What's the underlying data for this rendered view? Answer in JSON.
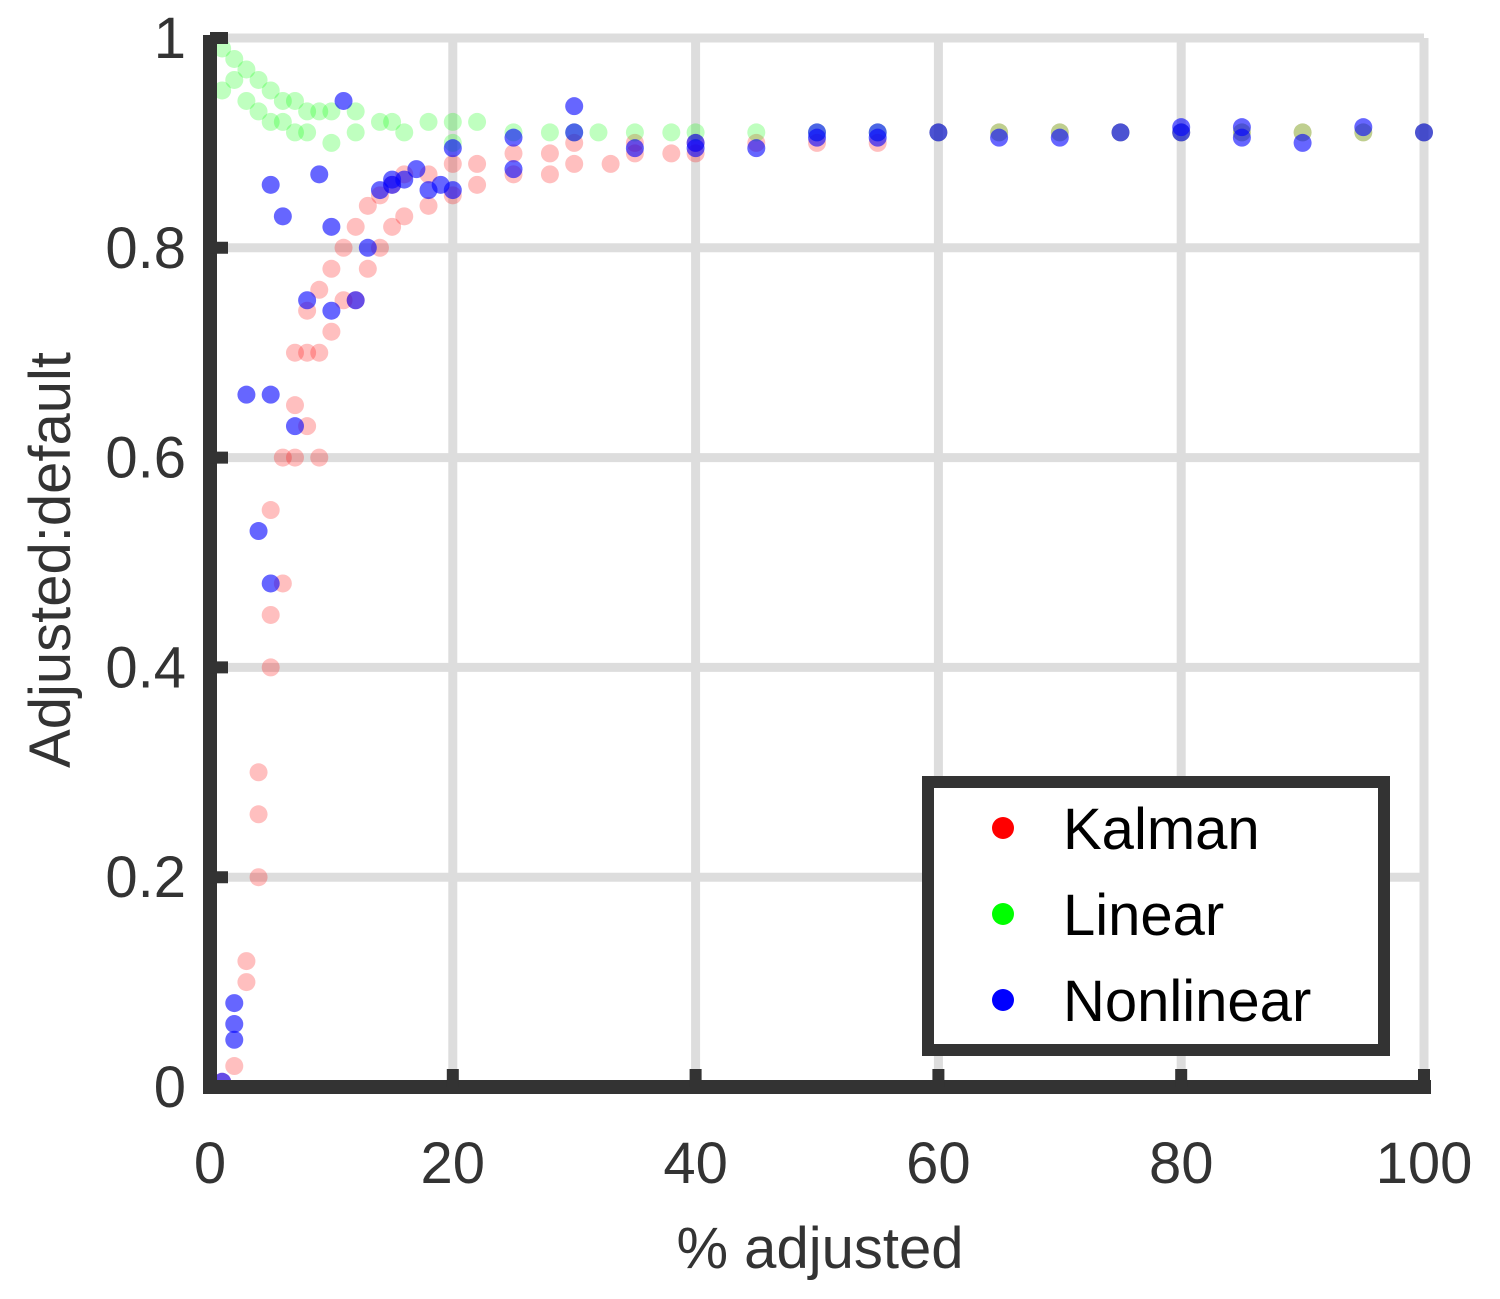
{
  "chart_data": {
    "type": "scatter",
    "xlabel": "% adjusted",
    "ylabel": "Adjusted:default",
    "xlim": [
      0,
      100
    ],
    "ylim": [
      0,
      1
    ],
    "x_ticks": [
      "0",
      "20",
      "40",
      "60",
      "80",
      "100"
    ],
    "y_ticks": [
      "0",
      "0.2",
      "0.4",
      "0.6",
      "0.8",
      "1"
    ],
    "grid": true,
    "legend_position": "bottom-right",
    "series": [
      {
        "name": "Kalman",
        "color": "#ff0000",
        "alpha": 0.25,
        "points": [
          [
            1,
            0.005
          ],
          [
            2,
            0.02
          ],
          [
            3,
            0.1
          ],
          [
            3,
            0.12
          ],
          [
            4,
            0.2
          ],
          [
            4,
            0.26
          ],
          [
            4,
            0.3
          ],
          [
            5,
            0.4
          ],
          [
            5,
            0.45
          ],
          [
            5,
            0.55
          ],
          [
            6,
            0.48
          ],
          [
            6,
            0.6
          ],
          [
            7,
            0.6
          ],
          [
            7,
            0.65
          ],
          [
            7,
            0.7
          ],
          [
            8,
            0.63
          ],
          [
            8,
            0.7
          ],
          [
            8,
            0.74
          ],
          [
            9,
            0.6
          ],
          [
            9,
            0.7
          ],
          [
            9,
            0.76
          ],
          [
            10,
            0.72
          ],
          [
            10,
            0.78
          ],
          [
            11,
            0.75
          ],
          [
            11,
            0.8
          ],
          [
            12,
            0.75
          ],
          [
            12,
            0.82
          ],
          [
            13,
            0.78
          ],
          [
            13,
            0.84
          ],
          [
            14,
            0.8
          ],
          [
            14,
            0.85
          ],
          [
            15,
            0.82
          ],
          [
            15,
            0.86
          ],
          [
            16,
            0.83
          ],
          [
            16,
            0.87
          ],
          [
            18,
            0.84
          ],
          [
            18,
            0.87
          ],
          [
            20,
            0.85
          ],
          [
            20,
            0.88
          ],
          [
            22,
            0.86
          ],
          [
            22,
            0.88
          ],
          [
            25,
            0.87
          ],
          [
            25,
            0.89
          ],
          [
            28,
            0.87
          ],
          [
            28,
            0.89
          ],
          [
            30,
            0.88
          ],
          [
            30,
            0.9
          ],
          [
            33,
            0.88
          ],
          [
            35,
            0.89
          ],
          [
            35,
            0.9
          ],
          [
            38,
            0.89
          ],
          [
            40,
            0.89
          ],
          [
            40,
            0.9
          ],
          [
            45,
            0.9
          ],
          [
            50,
            0.9
          ],
          [
            55,
            0.9
          ],
          [
            60,
            0.91
          ],
          [
            65,
            0.91
          ],
          [
            70,
            0.91
          ],
          [
            75,
            0.91
          ],
          [
            80,
            0.91
          ],
          [
            85,
            0.91
          ],
          [
            90,
            0.91
          ],
          [
            95,
            0.91
          ],
          [
            100,
            0.91
          ]
        ]
      },
      {
        "name": "Linear",
        "color": "#00ff00",
        "alpha": 0.25,
        "points": [
          [
            1,
            0.99
          ],
          [
            1,
            0.95
          ],
          [
            2,
            0.98
          ],
          [
            2,
            0.96
          ],
          [
            3,
            0.97
          ],
          [
            3,
            0.94
          ],
          [
            4,
            0.96
          ],
          [
            4,
            0.93
          ],
          [
            5,
            0.95
          ],
          [
            5,
            0.92
          ],
          [
            6,
            0.94
          ],
          [
            6,
            0.92
          ],
          [
            7,
            0.94
          ],
          [
            7,
            0.91
          ],
          [
            8,
            0.93
          ],
          [
            8,
            0.91
          ],
          [
            9,
            0.93
          ],
          [
            10,
            0.93
          ],
          [
            10,
            0.9
          ],
          [
            12,
            0.93
          ],
          [
            12,
            0.91
          ],
          [
            14,
            0.92
          ],
          [
            15,
            0.92
          ],
          [
            16,
            0.91
          ],
          [
            18,
            0.92
          ],
          [
            20,
            0.92
          ],
          [
            20,
            0.9
          ],
          [
            22,
            0.92
          ],
          [
            25,
            0.91
          ],
          [
            28,
            0.91
          ],
          [
            30,
            0.91
          ],
          [
            32,
            0.91
          ],
          [
            35,
            0.91
          ],
          [
            38,
            0.91
          ],
          [
            40,
            0.91
          ],
          [
            45,
            0.91
          ],
          [
            50,
            0.91
          ],
          [
            55,
            0.91
          ],
          [
            60,
            0.91
          ],
          [
            65,
            0.91
          ],
          [
            70,
            0.91
          ],
          [
            75,
            0.91
          ],
          [
            80,
            0.91
          ],
          [
            85,
            0.91
          ],
          [
            90,
            0.91
          ],
          [
            95,
            0.91
          ],
          [
            100,
            0.91
          ]
        ]
      },
      {
        "name": "Nonlinear",
        "color": "#0000ff",
        "alpha": 0.6,
        "points": [
          [
            1,
            0.005
          ],
          [
            2,
            0.045
          ],
          [
            2,
            0.06
          ],
          [
            2,
            0.08
          ],
          [
            3,
            0.66
          ],
          [
            4,
            0.53
          ],
          [
            5,
            0.48
          ],
          [
            5,
            0.66
          ],
          [
            5,
            0.86
          ],
          [
            6,
            0.83
          ],
          [
            7,
            0.63
          ],
          [
            8,
            0.75
          ],
          [
            9,
            0.87
          ],
          [
            10,
            0.74
          ],
          [
            10,
            0.82
          ],
          [
            11,
            0.94
          ],
          [
            12,
            0.75
          ],
          [
            13,
            0.8
          ],
          [
            14,
            0.855
          ],
          [
            15,
            0.86
          ],
          [
            15,
            0.865
          ],
          [
            16,
            0.865
          ],
          [
            17,
            0.875
          ],
          [
            18,
            0.855
          ],
          [
            19,
            0.86
          ],
          [
            20,
            0.855
          ],
          [
            20,
            0.895
          ],
          [
            25,
            0.875
          ],
          [
            25,
            0.905
          ],
          [
            30,
            0.91
          ],
          [
            30,
            0.935
          ],
          [
            35,
            0.895
          ],
          [
            40,
            0.9
          ],
          [
            40,
            0.895
          ],
          [
            45,
            0.895
          ],
          [
            50,
            0.905
          ],
          [
            50,
            0.91
          ],
          [
            55,
            0.905
          ],
          [
            55,
            0.91
          ],
          [
            60,
            0.91
          ],
          [
            65,
            0.905
          ],
          [
            70,
            0.905
          ],
          [
            75,
            0.91
          ],
          [
            80,
            0.91
          ],
          [
            80,
            0.915
          ],
          [
            85,
            0.905
          ],
          [
            85,
            0.915
          ],
          [
            90,
            0.9
          ],
          [
            95,
            0.915
          ],
          [
            100,
            0.91
          ]
        ]
      }
    ]
  }
}
